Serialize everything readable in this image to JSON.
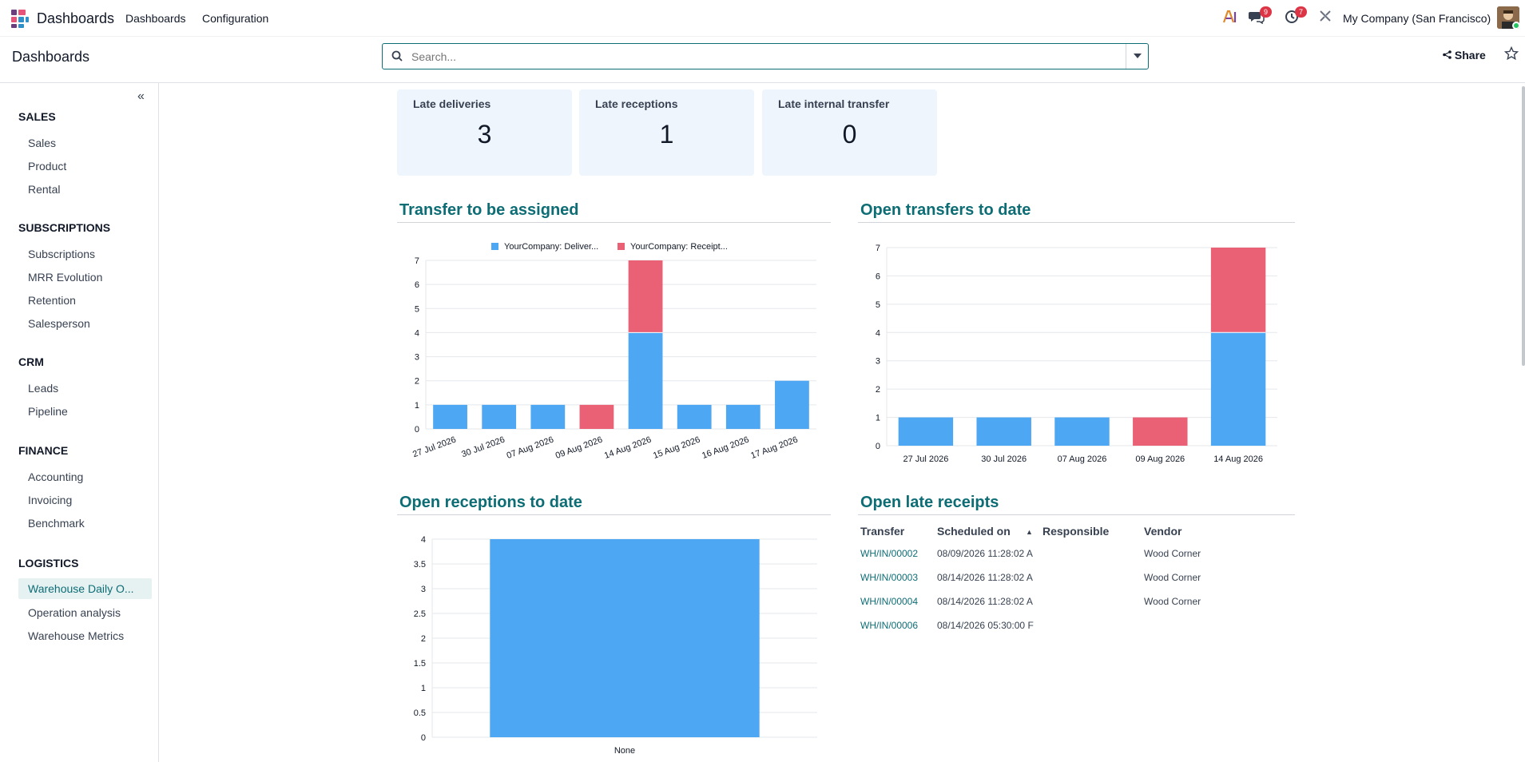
{
  "navbar": {
    "app_name": "Dashboards",
    "menu": [
      "Dashboards",
      "Configuration"
    ],
    "messages_badge": "9",
    "activities_badge": "7",
    "company": "My Company (San Francisco)"
  },
  "control_panel": {
    "breadcrumb": "Dashboards",
    "search_placeholder": "Search...",
    "share_label": "Share"
  },
  "sidebar": {
    "groups": [
      {
        "title": "SALES",
        "items": [
          "Sales",
          "Product",
          "Rental"
        ]
      },
      {
        "title": "SUBSCRIPTIONS",
        "items": [
          "Subscriptions",
          "MRR Evolution",
          "Retention",
          "Salesperson"
        ]
      },
      {
        "title": "CRM",
        "items": [
          "Leads",
          "Pipeline"
        ]
      },
      {
        "title": "FINANCE",
        "items": [
          "Accounting",
          "Invoicing",
          "Benchmark"
        ]
      },
      {
        "title": "LOGISTICS",
        "items": [
          "Warehouse Daily O...",
          "Operation analysis",
          "Warehouse Metrics"
        ]
      }
    ],
    "active_item": "Warehouse Daily O..."
  },
  "kpis": [
    {
      "label": "Late deliveries",
      "value": "3"
    },
    {
      "label": "Late receptions",
      "value": "1"
    },
    {
      "label": "Late internal transfer",
      "value": "0"
    }
  ],
  "colors": {
    "blue": "#4ea7f2",
    "red": "#ea6175",
    "accent": "#0d6d75"
  },
  "chart_data": [
    {
      "type": "bar",
      "title": "Transfer to be assigned",
      "stacked": true,
      "categories": [
        "27 Jul 2026",
        "30 Jul 2026",
        "07 Aug 2026",
        "09 Aug 2026",
        "14 Aug 2026",
        "15 Aug 2026",
        "16 Aug 2026",
        "17 Aug 2026"
      ],
      "series": [
        {
          "name": "YourCompany: Deliver...",
          "values": [
            1,
            1,
            1,
            0,
            4,
            1,
            1,
            2
          ]
        },
        {
          "name": "YourCompany: Receipt...",
          "values": [
            0,
            0,
            0,
            1,
            3,
            0,
            0,
            0
          ]
        }
      ],
      "ylim": [
        0,
        7
      ],
      "yticks": [
        "0",
        "1",
        "2",
        "3",
        "4",
        "5",
        "6",
        "7"
      ],
      "legend": "top"
    },
    {
      "type": "bar",
      "title": "Open transfers to date",
      "stacked": true,
      "categories": [
        "27 Jul 2026",
        "30 Jul 2026",
        "07 Aug 2026",
        "09 Aug 2026",
        "14 Aug 2026"
      ],
      "series": [
        {
          "values": [
            1,
            1,
            1,
            0,
            4
          ]
        },
        {
          "values": [
            0,
            0,
            0,
            1,
            3
          ]
        }
      ],
      "ylim": [
        0,
        7
      ],
      "yticks": [
        "0",
        "1",
        "2",
        "3",
        "4",
        "5",
        "6",
        "7"
      ]
    },
    {
      "type": "bar",
      "title": "Open receptions to date",
      "categories": [
        "None"
      ],
      "series": [
        {
          "values": [
            4
          ]
        }
      ],
      "ylim": [
        0,
        4
      ],
      "yticks": [
        "0",
        "0.5",
        "1",
        "1.5",
        "2",
        "2.5",
        "3",
        "3.5",
        "4"
      ]
    }
  ],
  "late_receipts": {
    "title": "Open late receipts",
    "columns": [
      "Transfer",
      "Scheduled on",
      "Responsible",
      "Vendor"
    ],
    "rows": [
      {
        "transfer": "WH/IN/00002",
        "scheduled": "08/09/2026 11:28:02 A",
        "responsible": "",
        "vendor": "Wood Corner"
      },
      {
        "transfer": "WH/IN/00003",
        "scheduled": "08/14/2026 11:28:02 A",
        "responsible": "",
        "vendor": "Wood Corner"
      },
      {
        "transfer": "WH/IN/00004",
        "scheduled": "08/14/2026 11:28:02 A",
        "responsible": "",
        "vendor": "Wood Corner"
      },
      {
        "transfer": "WH/IN/00006",
        "scheduled": "08/14/2026 05:30:00 F",
        "responsible": "",
        "vendor": ""
      }
    ]
  }
}
